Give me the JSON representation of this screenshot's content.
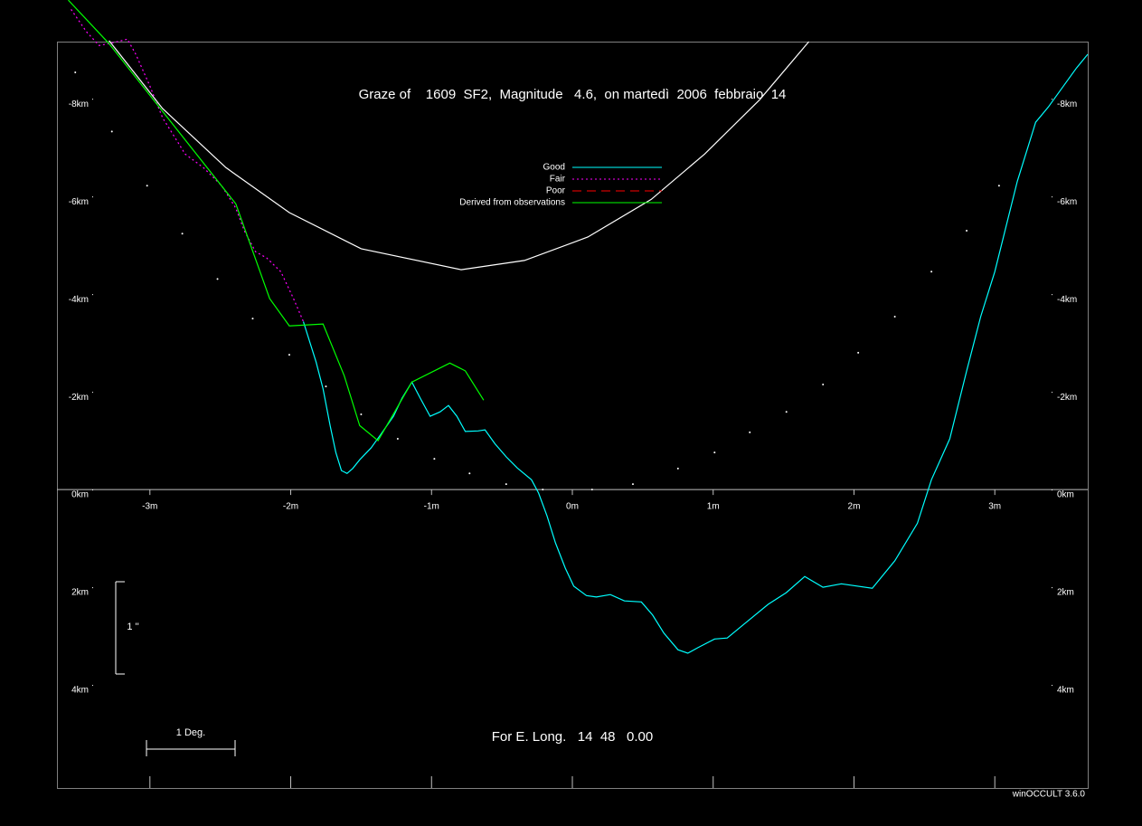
{
  "chart_data": {
    "type": "line",
    "title": "Graze of    1609  SF2,  Magnitude   4.6,  on martedì  2006  febbraio  14",
    "subtitle": "For E. Long.   14  48   0.00",
    "scale_time_label": "1 Deg.",
    "scale_arc_label": "1 ''",
    "footer": "winOCCULT 3.6.0",
    "xlim": [
      -3.66,
      3.66
    ],
    "ylim": [
      -9.17,
      6.11
    ],
    "xticks": [
      {
        "value": -3,
        "label": "-3m"
      },
      {
        "value": -2,
        "label": "-2m"
      },
      {
        "value": -1,
        "label": "-1m"
      },
      {
        "value": 0,
        "label": "0m"
      },
      {
        "value": 1,
        "label": "1m"
      },
      {
        "value": 2,
        "label": "2m"
      },
      {
        "value": 3,
        "label": "3m"
      }
    ],
    "yticks": [
      {
        "value": -8,
        "label": "-8km"
      },
      {
        "value": -6,
        "label": "-6km"
      },
      {
        "value": -4,
        "label": "-4km"
      },
      {
        "value": -2,
        "label": "-2km"
      },
      {
        "value": 0,
        "label": "0km"
      },
      {
        "value": 2,
        "label": "2km"
      },
      {
        "value": 4,
        "label": "4km"
      }
    ],
    "series": [
      {
        "name": "Good",
        "color": "#00ffff",
        "dash": "solid",
        "x": [
          -1.91,
          -1.82,
          -1.77,
          -1.72,
          -1.68,
          -1.64,
          -1.6,
          -1.56,
          -1.51,
          -1.43,
          -1.37,
          -1.27,
          -1.21,
          -1.14,
          -1.08,
          -1.01,
          -0.94,
          -0.88,
          -0.82,
          -0.76,
          -0.67,
          -0.62,
          -0.55,
          -0.47,
          -0.39,
          -0.29,
          -0.24,
          -0.18,
          -0.12,
          -0.05,
          0.01,
          0.1,
          0.17,
          0.27,
          0.37,
          0.49,
          0.57,
          0.65,
          0.75,
          0.82,
          0.89,
          1.01,
          1.1,
          1.2,
          1.39,
          1.52,
          1.65,
          1.78,
          1.91,
          2.13,
          2.29,
          2.45,
          2.55,
          2.68,
          2.8,
          2.9,
          3.0,
          3.16,
          3.29,
          3.38,
          3.58,
          3.66
        ],
        "values": [
          -3.44,
          -2.61,
          -2.06,
          -1.31,
          -0.76,
          -0.39,
          -0.33,
          -0.43,
          -0.61,
          -0.85,
          -1.09,
          -1.5,
          -1.87,
          -2.2,
          -1.87,
          -1.5,
          -1.59,
          -1.72,
          -1.5,
          -1.19,
          -1.2,
          -1.22,
          -0.94,
          -0.67,
          -0.44,
          -0.2,
          0.07,
          0.54,
          1.09,
          1.61,
          1.98,
          2.17,
          2.2,
          2.15,
          2.28,
          2.3,
          2.57,
          2.94,
          3.28,
          3.35,
          3.24,
          3.06,
          3.04,
          2.8,
          2.35,
          2.11,
          1.78,
          2.0,
          1.93,
          2.02,
          1.46,
          0.69,
          -0.2,
          -1.04,
          -2.43,
          -3.54,
          -4.46,
          -6.31,
          -7.52,
          -7.83,
          -8.63,
          -8.91
        ]
      },
      {
        "name": "Fair",
        "color": "#ff00ff",
        "dash": "dotted",
        "x": [
          -3.56,
          -3.45,
          -3.36,
          -3.26,
          -3.16,
          -3.1,
          -3.0,
          -2.91,
          -2.81,
          -2.75,
          -2.62,
          -2.49,
          -2.39,
          -2.33,
          -2.25,
          -2.17,
          -2.07,
          -1.98,
          -1.91
        ],
        "values": [
          -9.83,
          -9.37,
          -9.09,
          -9.15,
          -9.22,
          -8.91,
          -8.26,
          -7.61,
          -7.15,
          -6.87,
          -6.59,
          -6.22,
          -5.76,
          -5.3,
          -4.87,
          -4.74,
          -4.46,
          -3.91,
          -3.44
        ]
      },
      {
        "name": "Poor",
        "color": "#ff0000",
        "dash": "dashed",
        "x": [],
        "values": []
      },
      {
        "name": "Derived from observations",
        "color": "#00ff00",
        "dash": "solid",
        "x": [
          -3.58,
          -3.29,
          -3.0,
          -2.39,
          -2.15,
          -2.01,
          -1.77,
          -1.62,
          -1.51,
          -1.38,
          -1.14,
          -0.87,
          -0.76,
          -0.63
        ],
        "values": [
          -10.02,
          -9.13,
          -8.07,
          -5.85,
          -3.91,
          -3.35,
          -3.39,
          -2.33,
          -1.31,
          -1.0,
          -2.2,
          -2.59,
          -2.43,
          -1.83
        ]
      },
      {
        "color": "#ffffff",
        "dash": "solid",
        "x": [
          -3.29,
          -2.91,
          -2.46,
          -2.01,
          -1.5,
          -0.79,
          -0.34,
          0.11,
          0.56,
          0.94,
          1.33,
          1.68
        ],
        "values": [
          -9.19,
          -7.8,
          -6.59,
          -5.67,
          -4.93,
          -4.5,
          -4.69,
          -5.17,
          -5.94,
          -6.87,
          -7.98,
          -9.17
        ]
      },
      {
        "color": "#ffffff",
        "dash": "dots",
        "x": [
          -3.53,
          -3.27,
          -3.02,
          -2.77,
          -2.52,
          -2.27,
          -2.01,
          -1.75,
          -1.5,
          -1.24,
          -0.98,
          -0.73,
          -0.47,
          -0.21,
          0.14,
          0.43,
          0.75,
          1.01,
          1.26,
          1.52,
          1.78,
          2.03,
          2.29,
          2.55,
          2.8,
          3.03
        ],
        "values": [
          -8.54,
          -7.33,
          -6.22,
          -5.24,
          -4.31,
          -3.5,
          -2.76,
          -2.11,
          -1.54,
          -1.04,
          -0.63,
          -0.33,
          -0.11,
          0,
          0,
          -0.11,
          -0.43,
          -0.76,
          -1.17,
          -1.59,
          -2.15,
          -2.8,
          -3.54,
          -4.46,
          -5.3,
          -6.22
        ]
      }
    ]
  }
}
